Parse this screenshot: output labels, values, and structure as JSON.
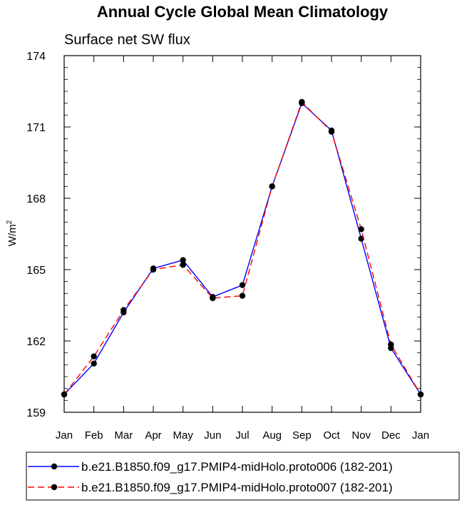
{
  "chart_data": {
    "type": "line",
    "title": "Annual Cycle Global Mean Climatology",
    "subtitle": "Surface net SW flux",
    "ylabel": "W/m",
    "ylabel_sup": "2",
    "ylim": [
      159,
      174
    ],
    "yticks": [
      159,
      162,
      165,
      168,
      171,
      174
    ],
    "ytick_labels": [
      "159",
      "162",
      "165",
      "168",
      "171",
      "174"
    ],
    "categories": [
      "Jan",
      "Feb",
      "Mar",
      "Apr",
      "May",
      "Jun",
      "Jul",
      "Aug",
      "Sep",
      "Oct",
      "Nov",
      "Dec",
      "Jan"
    ],
    "grid": false,
    "legend_position": "bottom",
    "series": [
      {
        "name": "b.e21.B1850.f09_g17.PMIP4-midHolo.proto006 (182-201)",
        "color": "#0000ff",
        "dash": "solid",
        "values": [
          159.75,
          161.05,
          163.2,
          165.05,
          165.4,
          163.85,
          164.35,
          168.5,
          172.0,
          170.85,
          166.3,
          161.7,
          159.75
        ]
      },
      {
        "name": "b.e21.B1850.f09_g17.PMIP4-midHolo.proto007 (182-201)",
        "color": "#ff0000",
        "dash": "dashed",
        "values": [
          159.75,
          161.35,
          163.3,
          165.0,
          165.2,
          163.8,
          163.9,
          168.5,
          172.05,
          170.8,
          166.7,
          161.85,
          159.75
        ]
      }
    ]
  }
}
